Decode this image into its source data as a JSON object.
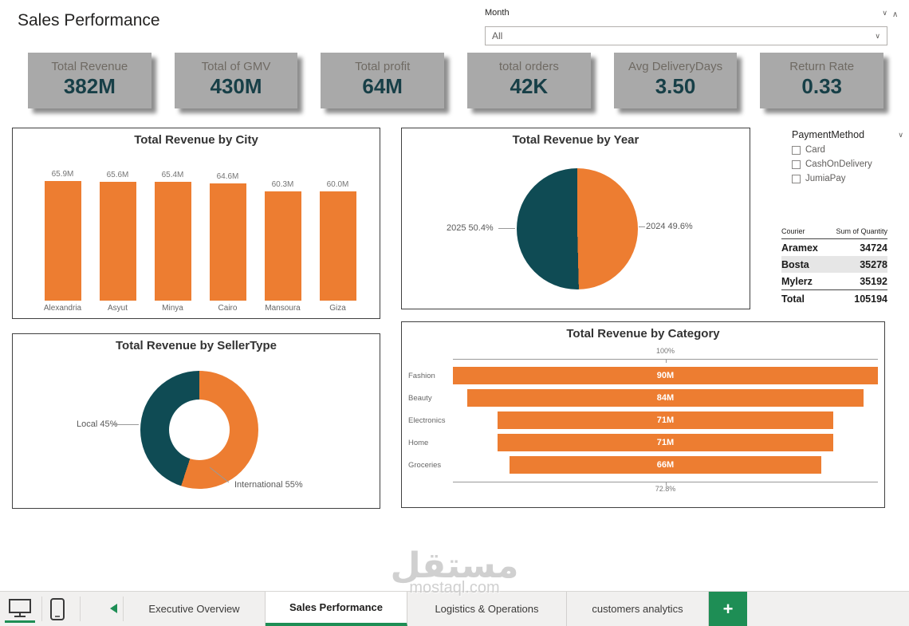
{
  "header": {
    "title": "Sales Performance"
  },
  "month_filter": {
    "label": "Month",
    "value": "All"
  },
  "kpis": [
    {
      "label": "Total Revenue",
      "value": "382M"
    },
    {
      "label": "Total of GMV",
      "value": "430M"
    },
    {
      "label": "Total profit",
      "value": "64M"
    },
    {
      "label": "total orders",
      "value": "42K"
    },
    {
      "label": "Avg DeliveryDays",
      "value": "3.50"
    },
    {
      "label": "Return Rate",
      "value": "0.33"
    }
  ],
  "colors": {
    "orange": "#ED7D31",
    "teal": "#0F4B54",
    "green": "#1E8E55",
    "kpi_value": "#173F47",
    "card_gray": "#A9A9A9"
  },
  "chart_data": [
    {
      "type": "bar",
      "title": "Total Revenue by City",
      "categories": [
        "Alexandria",
        "Asyut",
        "Minya",
        "Cairo",
        "Mansoura",
        "Giza"
      ],
      "values": [
        65.9,
        65.6,
        65.4,
        64.6,
        60.3,
        60.0
      ],
      "labels": [
        "65.9M",
        "65.6M",
        "65.4M",
        "64.6M",
        "60.3M",
        "60.0M"
      ],
      "xlabel": "",
      "ylabel": "",
      "ylim": [
        0,
        66
      ],
      "grid": false
    },
    {
      "type": "pie",
      "title": "Total Revenue by Year",
      "slices": [
        {
          "label": "2025",
          "pct": 50.4,
          "display": "2025 50.4%",
          "color": "#0F4B54"
        },
        {
          "label": "2024",
          "pct": 49.6,
          "display": "2024 49.6%",
          "color": "#ED7D31"
        }
      ]
    },
    {
      "type": "pie",
      "subtype": "donut",
      "title": "Total Revenue by SellerType",
      "slices": [
        {
          "label": "Local",
          "pct": 45,
          "display": "Local 45%",
          "color": "#0F4B54"
        },
        {
          "label": "International",
          "pct": 55,
          "display": "International 55%",
          "color": "#ED7D31"
        }
      ]
    },
    {
      "type": "bar",
      "subtype": "funnel",
      "title": "Total Revenue by Category",
      "categories": [
        "Fashion",
        "Beauty",
        "Electronics",
        "Home",
        "Groceries"
      ],
      "values": [
        90,
        84,
        71,
        71,
        66
      ],
      "labels": [
        "90M",
        "84M",
        "71M",
        "71M",
        "66M"
      ],
      "top_axis_label": "100%",
      "bottom_axis_label": "72.8%"
    },
    {
      "type": "table",
      "columns": [
        "Courier",
        "Sum of Quantity"
      ],
      "rows": [
        {
          "courier": "Aramex",
          "quantity": "34724",
          "highlighted": false
        },
        {
          "courier": "Bosta",
          "quantity": "35278",
          "highlighted": true
        },
        {
          "courier": "Mylerz",
          "quantity": "35192",
          "highlighted": false
        }
      ],
      "total": {
        "courier": "Total",
        "quantity": "105194"
      }
    }
  ],
  "payment_slicer": {
    "title": "PaymentMethod",
    "options": [
      "Card",
      "CashOnDelivery",
      "JumiaPay"
    ]
  },
  "bottom_bar": {
    "tabs": [
      {
        "label": "Executive Overview",
        "active": false
      },
      {
        "label": "Sales Performance",
        "active": true
      },
      {
        "label": "Logistics & Operations",
        "active": false
      },
      {
        "label": "customers analytics",
        "active": false
      }
    ],
    "add_label": "+"
  },
  "watermark": {
    "arabic": "مستقل",
    "latin": "mostaql.com"
  }
}
